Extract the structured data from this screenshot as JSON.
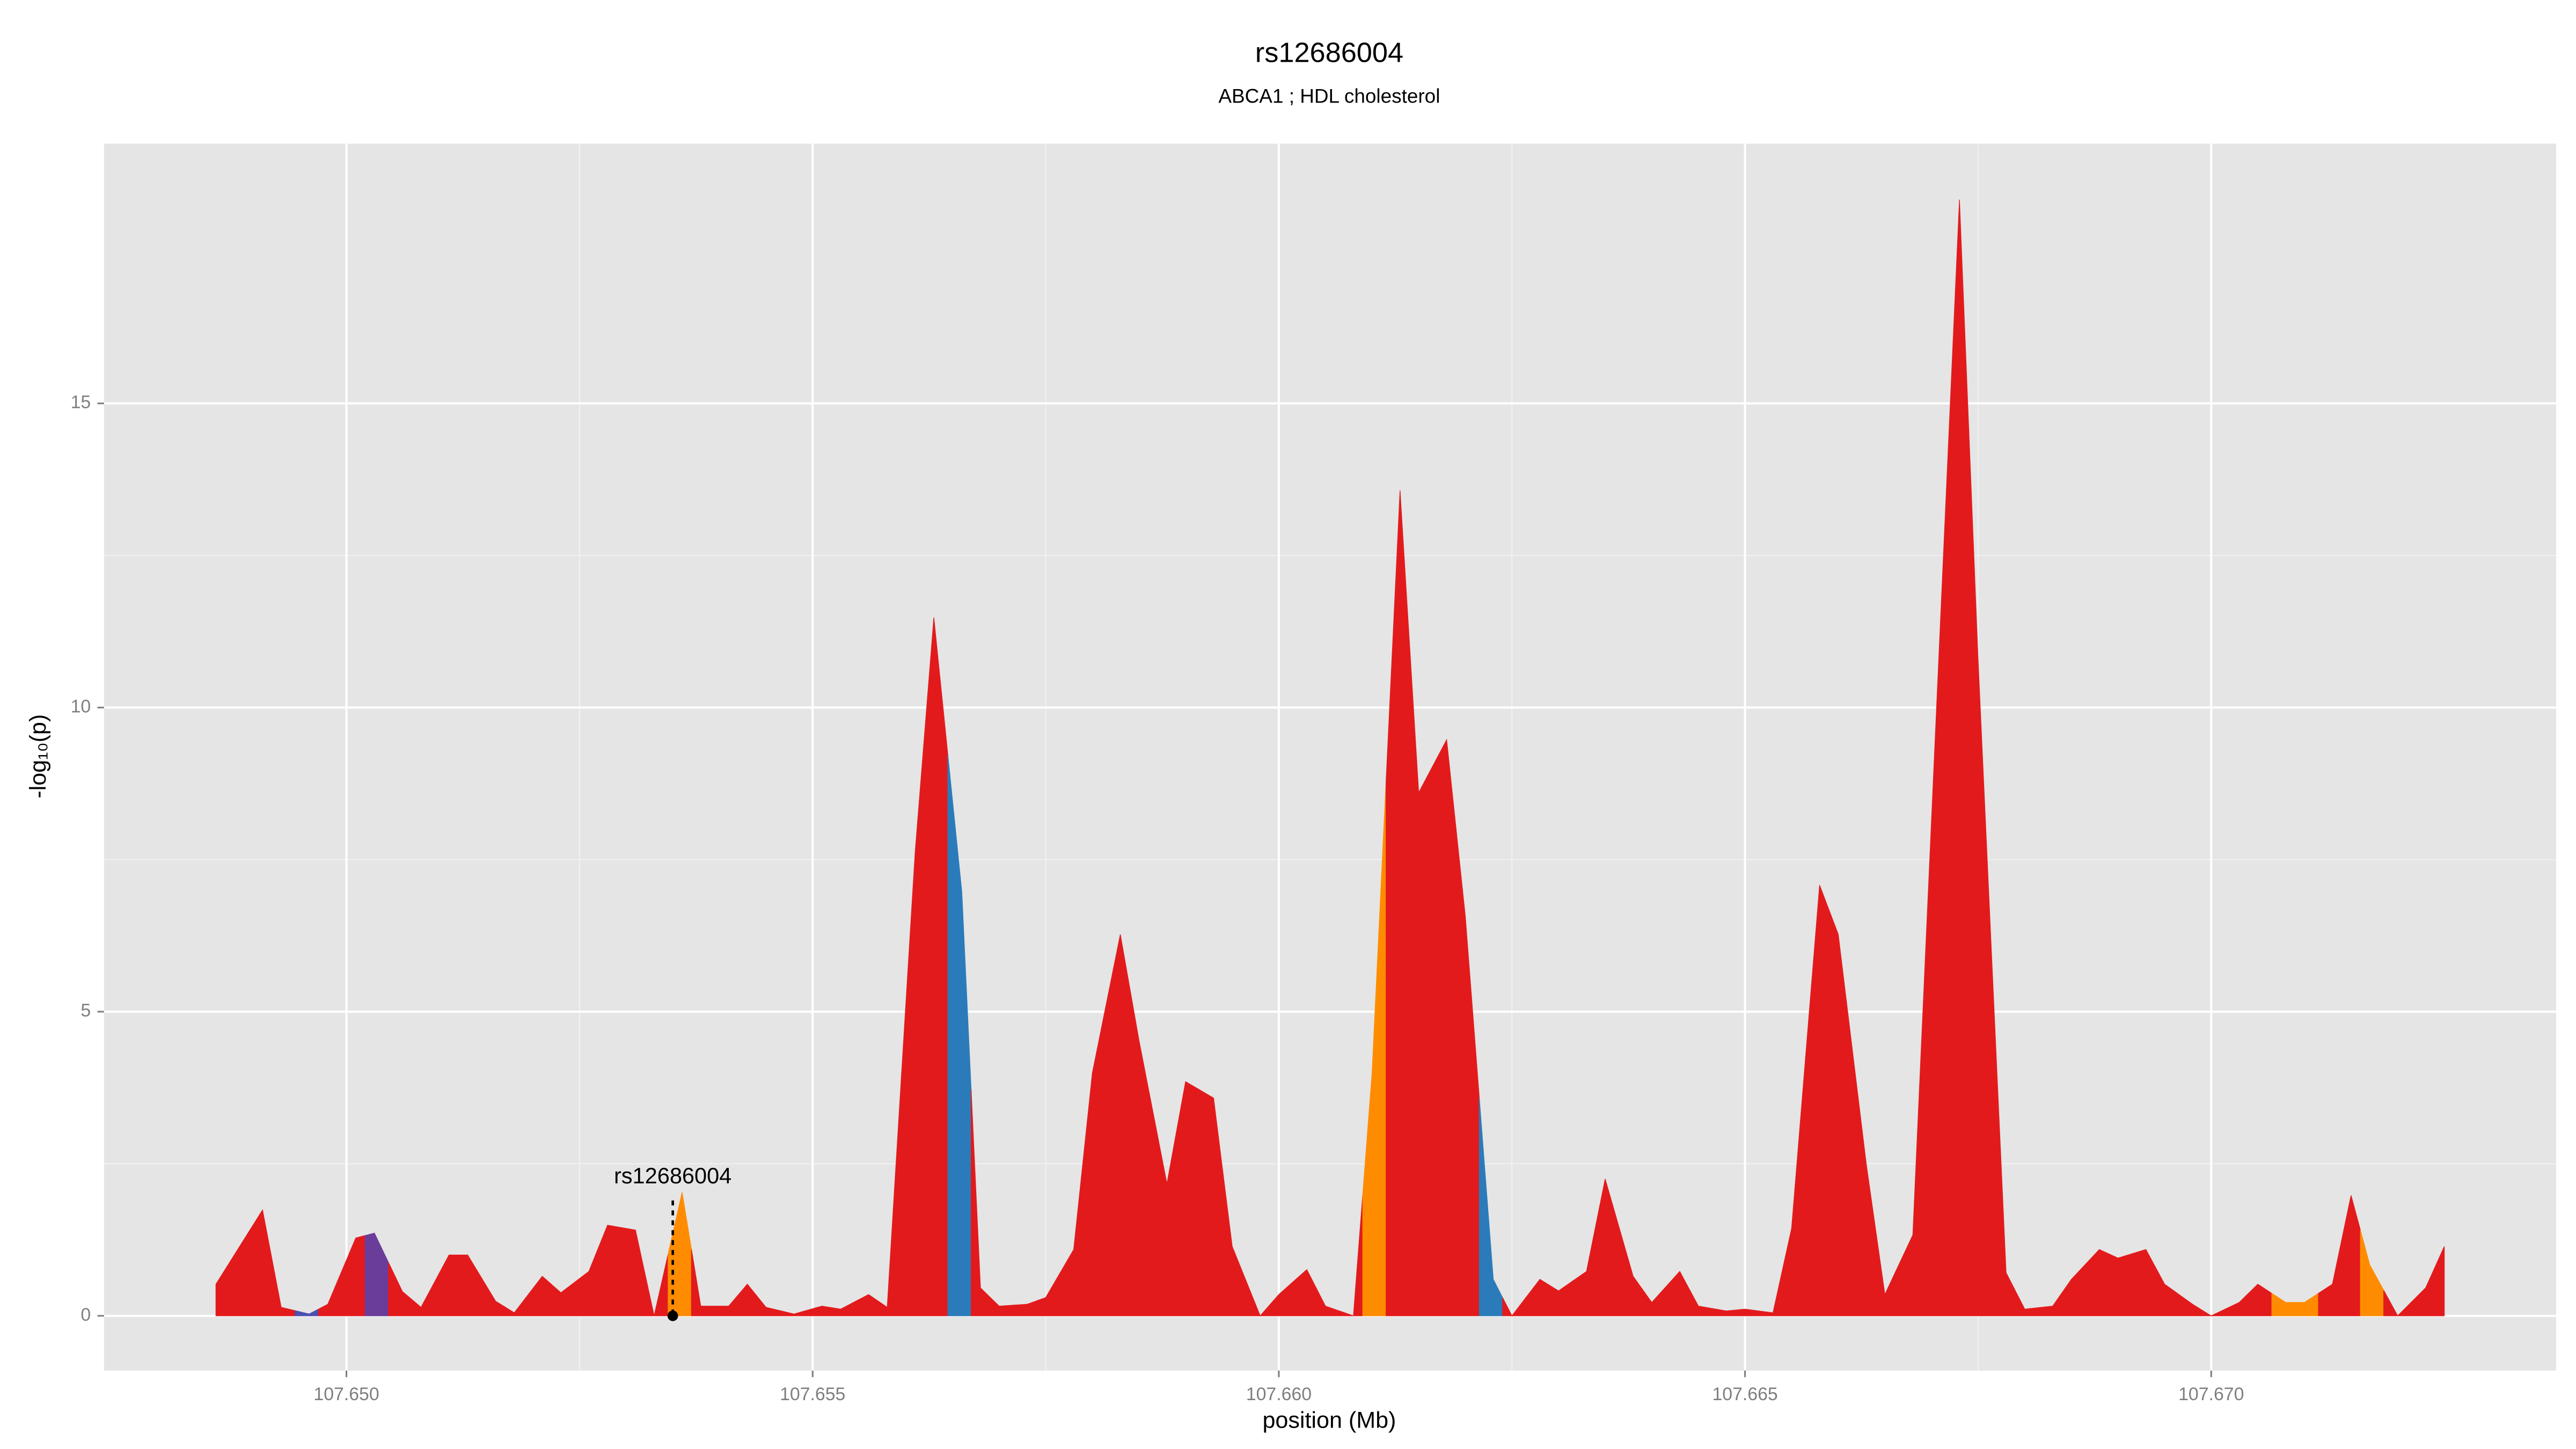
{
  "chart_data": {
    "type": "area",
    "title": "rs12686004",
    "subtitle": "ABCA1 ; HDL cholesterol",
    "x_label": "position (Mb)",
    "y_label": "-log₁₀(p)",
    "x": [
      107.6486,
      107.6491,
      107.6493,
      107.6496,
      107.6498,
      107.6501,
      107.6503,
      107.6506,
      107.6508,
      107.6511,
      107.6513,
      107.6516,
      107.6518,
      107.6521,
      107.6523,
      107.6526,
      107.6528,
      107.6531,
      107.6533,
      107.6536,
      107.6538,
      107.6541,
      107.6543,
      107.6545,
      107.6548,
      107.6551,
      107.6553,
      107.6556,
      107.6558,
      107.6561,
      107.6563,
      107.6566,
      107.6568,
      107.657,
      107.6573,
      107.6575,
      107.6578,
      107.658,
      107.6583,
      107.6585,
      107.6588,
      107.659,
      107.6593,
      107.6595,
      107.6598,
      107.66,
      107.6603,
      107.6605,
      107.6608,
      107.661,
      107.6613,
      107.6615,
      107.6618,
      107.662,
      107.6623,
      107.6625,
      107.6628,
      107.663,
      107.6633,
      107.6635,
      107.6638,
      107.664,
      107.6643,
      107.6645,
      107.6648,
      107.665,
      107.6653,
      107.6655,
      107.6658,
      107.666,
      107.6663,
      107.6665,
      107.6668,
      107.6673,
      107.6675,
      107.6678,
      107.668,
      107.6683,
      107.6685,
      107.6688,
      107.669,
      107.6693,
      107.6695,
      107.6698,
      107.67,
      107.6703,
      107.6705,
      107.6708,
      107.671,
      107.6713,
      107.6715,
      107.6717,
      107.672,
      107.6723,
      107.6725
    ],
    "series": [
      {
        "values": [
          0.52,
          1.74,
          0.14,
          0.03,
          0.19,
          1.28,
          1.36,
          0.4,
          0.14,
          1.0,
          1.0,
          0.24,
          0.05,
          0.65,
          0.38,
          0.73,
          1.49,
          1.41,
          0.0,
          2.03,
          0.16,
          0.16,
          0.52,
          0.14,
          0.03,
          0.16,
          0.11,
          0.35,
          0.14,
          7.63,
          11.48,
          6.97,
          0.46,
          0.16,
          0.19,
          0.3,
          1.09,
          3.99,
          6.27,
          4.53,
          2.17,
          3.85,
          3.58,
          1.14,
          0.0,
          0.35,
          0.76,
          0.16,
          0.0,
          3.99,
          13.57,
          8.6,
          9.47,
          6.57,
          0.6,
          0.0,
          0.6,
          0.41,
          0.73,
          2.25,
          0.65,
          0.22,
          0.73,
          0.16,
          0.08,
          0.11,
          0.05,
          1.44,
          7.08,
          6.27,
          2.5,
          0.35,
          1.33,
          18.35,
          10.77,
          0.71,
          0.11,
          0.16,
          0.6,
          1.09,
          0.95,
          1.09,
          0.52,
          0.19,
          0.0,
          0.22,
          0.52,
          0.22,
          0.22,
          0.52,
          1.98,
          0.84,
          0.0,
          0.46,
          1.14
        ],
        "colors": [
          "#e31a1c",
          "#e31a1c",
          "#e31a1c",
          "#4a4fb0",
          "#e31a1c",
          "#e31a1c",
          "#6a3d9a",
          "#e31a1c",
          "#e31a1c",
          "#e31a1c",
          "#e31a1c",
          "#e31a1c",
          "#e31a1c",
          "#e31a1c",
          "#e31a1c",
          "#e31a1c",
          "#e31a1c",
          "#e31a1c",
          "#e31a1c",
          "#ff8c00",
          "#e31a1c",
          "#e31a1c",
          "#e31a1c",
          "#e31a1c",
          "#e31a1c",
          "#e31a1c",
          "#e31a1c",
          "#e31a1c",
          "#e31a1c",
          "#e31a1c",
          "#e31a1c",
          "#2b7bba",
          "#e31a1c",
          "#e31a1c",
          "#e31a1c",
          "#e31a1c",
          "#e31a1c",
          "#e31a1c",
          "#e31a1c",
          "#e31a1c",
          "#e31a1c",
          "#e31a1c",
          "#e31a1c",
          "#e31a1c",
          "#e31a1c",
          "#e31a1c",
          "#e31a1c",
          "#e31a1c",
          "#e31a1c",
          "#ff8c00",
          "#e31a1c",
          "#e31a1c",
          "#e31a1c",
          "#e31a1c",
          "#2b7bba",
          "#e31a1c",
          "#e31a1c",
          "#e31a1c",
          "#e31a1c",
          "#e31a1c",
          "#e31a1c",
          "#e31a1c",
          "#e31a1c",
          "#e31a1c",
          "#e31a1c",
          "#e31a1c",
          "#e31a1c",
          "#e31a1c",
          "#e31a1c",
          "#e31a1c",
          "#e31a1c",
          "#e31a1c",
          "#e31a1c",
          "#e31a1c",
          "#e31a1c",
          "#e31a1c",
          "#e31a1c",
          "#e31a1c",
          "#e31a1c",
          "#e31a1c",
          "#e31a1c",
          "#e31a1c",
          "#e31a1c",
          "#e31a1c",
          "#e31a1c",
          "#e31a1c",
          "#e31a1c",
          "#ff8c00",
          "#ff8c00",
          "#e31a1c",
          "#e31a1c",
          "#ff8c00",
          "#e31a1c",
          "#e31a1c",
          "#e31a1c"
        ]
      }
    ],
    "annotation": {
      "label": "rs12686004",
      "x": 107.6535
    },
    "xlim": [
      107.6474,
      107.6737
    ],
    "ylim": [
      -0.9,
      19.27
    ],
    "xticks": [
      {
        "value": 107.65,
        "label": "107.650"
      },
      {
        "value": 107.655,
        "label": "107.655"
      },
      {
        "value": 107.66,
        "label": "107.660"
      },
      {
        "value": 107.665,
        "label": "107.665"
      },
      {
        "value": 107.67,
        "label": "107.670"
      }
    ],
    "yticks": [
      0,
      5,
      10,
      15
    ],
    "grid": true
  }
}
